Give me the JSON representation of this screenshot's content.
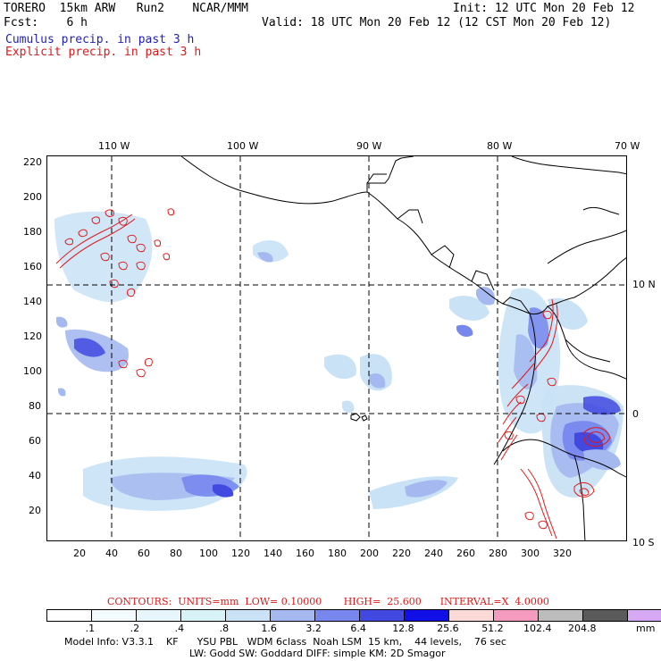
{
  "header": {
    "model_run": "TORERO  15km ARW   Run2    NCAR/MMM",
    "init": "Init: 12 UTC Mon 20 Feb 12",
    "fcst": "Fcst:    6 h",
    "valid": "Valid: 18 UTC Mon 20 Feb 12 (12 CST Mon 20 Feb 12)",
    "field_cumulus": "Cumulus precip. in past 3 h",
    "field_explicit": "Explicit precip. in past 3 h"
  },
  "colors": {
    "cumulus_text": "#1f1fb4",
    "explicit_text": "#d81a1a",
    "contour_line": "#e01818"
  },
  "map": {
    "lon_labels": [
      "110 W",
      "100 W",
      "90 W",
      "80 W",
      "70 W"
    ],
    "lat_labels": [
      "10 N",
      "0",
      "10 S"
    ],
    "x_ticks": [
      "20",
      "40",
      "60",
      "80",
      "100",
      "120",
      "140",
      "160",
      "180",
      "200",
      "220",
      "240",
      "260",
      "280",
      "300",
      "320"
    ],
    "y_ticks": [
      "220",
      "200",
      "180",
      "160",
      "140",
      "120",
      "100",
      "80",
      "60",
      "40",
      "20"
    ]
  },
  "contours_text": "CONTOURS:  UNITS=mm  LOW= 0.10000       HIGH=  25.600      INTERVAL=X  4.0000",
  "colorbar": {
    "thresholds": [
      ".1",
      ".2",
      ".4",
      ".8",
      "1.6",
      "3.2",
      "6.4",
      "12.8",
      "25.6",
      "51.2",
      "102.4",
      "204.8"
    ],
    "unit": "mm",
    "colors": [
      "#ffffff",
      "#f4fbff",
      "#e6f6fb",
      "#d8f3f7",
      "#c9e2f6",
      "#a5b9f0",
      "#7787ee",
      "#4149e0",
      "#1010e6",
      "#fbd9d6",
      "#f59bbf",
      "#bcbcbc",
      "#5a5a5a",
      "#d7a8f3"
    ]
  },
  "footer": {
    "line1": "Model Info: V3.3.1    KF      YSU PBL   WDM 6class  Noah LSM  15 km,    44 levels,    76 sec",
    "line2": "LW: Godd SW: Goddard DIFF: simple KM: 2D Smagor"
  }
}
